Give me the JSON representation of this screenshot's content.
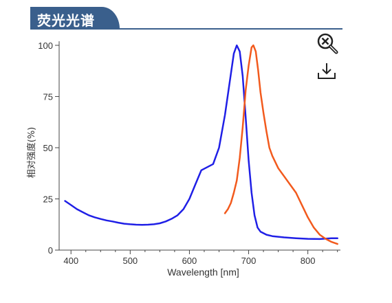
{
  "header": {
    "title": "荧光光谱"
  },
  "toolbar": {
    "zoom_reset_icon": "zoom-reset-icon",
    "download_icon": "download-icon"
  },
  "chart_data": {
    "type": "line",
    "title": "",
    "xlabel": "Wavelength [nm]",
    "ylabel": "相对强度(%)",
    "xlim": [
      380,
      855
    ],
    "ylim": [
      0,
      102
    ],
    "xticks": [
      400,
      500,
      600,
      700,
      800
    ],
    "yticks": [
      0,
      25,
      50,
      75,
      100
    ],
    "grid": false,
    "legend": "none",
    "series": [
      {
        "color": "#1f1fe6",
        "points": [
          [
            390,
            24
          ],
          [
            400,
            22
          ],
          [
            410,
            20
          ],
          [
            420,
            18.5
          ],
          [
            430,
            17
          ],
          [
            440,
            16
          ],
          [
            450,
            15.2
          ],
          [
            460,
            14.5
          ],
          [
            470,
            14
          ],
          [
            480,
            13.4
          ],
          [
            490,
            12.9
          ],
          [
            500,
            12.6
          ],
          [
            510,
            12.4
          ],
          [
            520,
            12.3
          ],
          [
            530,
            12.4
          ],
          [
            540,
            12.6
          ],
          [
            550,
            13.1
          ],
          [
            560,
            14
          ],
          [
            570,
            15.3
          ],
          [
            580,
            17
          ],
          [
            590,
            20
          ],
          [
            600,
            25
          ],
          [
            610,
            32
          ],
          [
            620,
            39
          ],
          [
            630,
            40.5
          ],
          [
            640,
            42
          ],
          [
            650,
            50
          ],
          [
            660,
            66
          ],
          [
            670,
            86
          ],
          [
            675,
            96
          ],
          [
            680,
            100
          ],
          [
            685,
            97
          ],
          [
            690,
            85
          ],
          [
            695,
            65
          ],
          [
            700,
            44
          ],
          [
            705,
            28
          ],
          [
            710,
            17
          ],
          [
            715,
            11
          ],
          [
            720,
            9
          ],
          [
            730,
            7.5
          ],
          [
            740,
            6.8
          ],
          [
            760,
            6.2
          ],
          [
            780,
            5.8
          ],
          [
            800,
            5.5
          ],
          [
            820,
            5.4
          ],
          [
            840,
            5.8
          ],
          [
            850,
            5.8
          ]
        ]
      },
      {
        "color": "#f25a1d",
        "points": [
          [
            660,
            18
          ],
          [
            665,
            20
          ],
          [
            670,
            23
          ],
          [
            675,
            28
          ],
          [
            680,
            34
          ],
          [
            685,
            45
          ],
          [
            690,
            60
          ],
          [
            695,
            78
          ],
          [
            700,
            90
          ],
          [
            705,
            99
          ],
          [
            708,
            100
          ],
          [
            712,
            97
          ],
          [
            716,
            88
          ],
          [
            720,
            77
          ],
          [
            725,
            67
          ],
          [
            730,
            58
          ],
          [
            735,
            50
          ],
          [
            740,
            46
          ],
          [
            750,
            40
          ],
          [
            760,
            36
          ],
          [
            770,
            32
          ],
          [
            780,
            28
          ],
          [
            790,
            22
          ],
          [
            800,
            16
          ],
          [
            810,
            11
          ],
          [
            820,
            7.5
          ],
          [
            830,
            5.5
          ],
          [
            840,
            4
          ],
          [
            850,
            3
          ]
        ]
      }
    ]
  }
}
